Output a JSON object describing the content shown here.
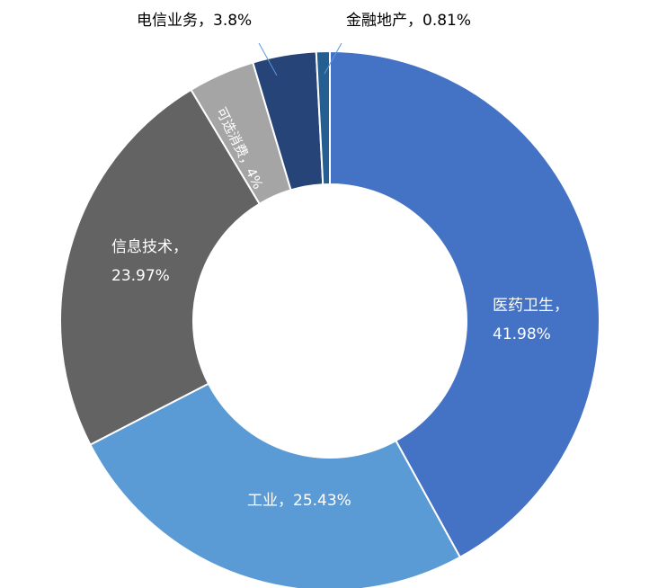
{
  "chart_data": {
    "type": "pie",
    "variant": "donut",
    "title": "",
    "legend": "none",
    "start_angle_deg": 0,
    "direction": "clockwise",
    "slices": [
      {
        "name": "医药卫生",
        "value": 41.98,
        "value_label": "41.98%",
        "color": "#4472C4",
        "label_color": "#ffffff",
        "label_lines": [
          "医药卫生，",
          "41.98%"
        ],
        "label_placement": "inside"
      },
      {
        "name": "工业",
        "value": 25.43,
        "value_label": "25.43%",
        "color": "#5B9BD5",
        "label_color": "#ffffff",
        "label_lines": [
          "工业，25.43%"
        ],
        "label_placement": "inside"
      },
      {
        "name": "信息技术",
        "value": 23.97,
        "value_label": "23.97%",
        "color": "#636363",
        "label_color": "#ffffff",
        "label_lines": [
          "信息技术，",
          "23.97%"
        ],
        "label_placement": "inside"
      },
      {
        "name": "可选消费",
        "value": 4,
        "value_label": "4%",
        "color": "#A5A5A5",
        "label_color": "#ffffff",
        "label_lines": [
          "可选消费，4%"
        ],
        "label_placement": "inside-rotated"
      },
      {
        "name": "电信业务",
        "value": 3.8,
        "value_label": "3.8%",
        "color": "#264478",
        "label_color": "#000000",
        "label_lines": [
          "电信业务，3.8%"
        ],
        "label_placement": "outside"
      },
      {
        "name": "金融地产",
        "value": 0.81,
        "value_label": "0.81%",
        "color": "#255E91",
        "label_color": "#000000",
        "label_lines": [
          "金融地产，0.81%"
        ],
        "label_placement": "outside"
      }
    ],
    "leader_line_color": "#5B9BD5",
    "slice_border_color": "#ffffff"
  }
}
